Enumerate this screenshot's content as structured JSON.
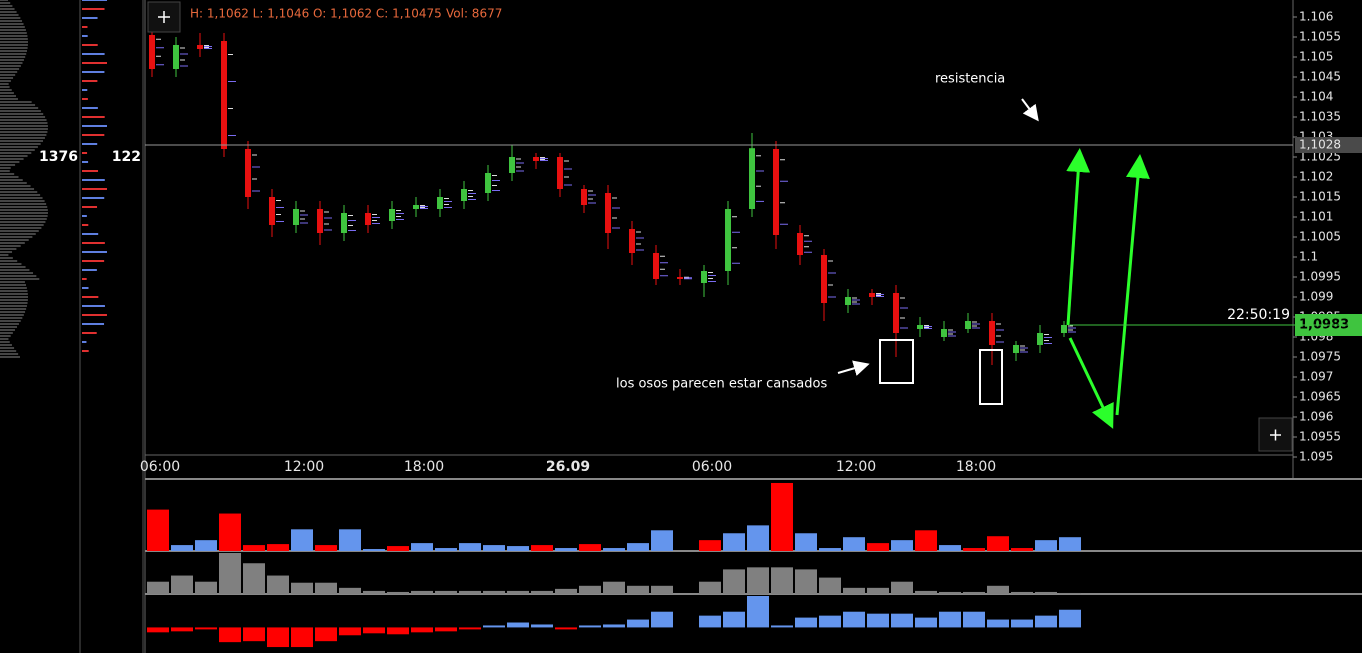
{
  "header": {
    "ohlc": "H: 1,1062 L: 1,1046 O: 1,1062 C: 1,10475",
    "volume": "Vol: 8677"
  },
  "profile": {
    "left_value": 1376,
    "right_value": 122
  },
  "annotations": {
    "resistance": "resistencia",
    "bears": "los osos parecen estar cansados"
  },
  "chart_data": [
    {
      "type": "candlestick",
      "categories": [
        "06:00",
        null,
        null,
        null,
        null,
        null,
        "12:00",
        null,
        null,
        null,
        null,
        "18:00",
        null,
        null,
        null,
        null,
        null,
        "26.09",
        null,
        null,
        null,
        null,
        null,
        "06:00",
        null,
        null,
        null,
        null,
        null,
        "12:00",
        null,
        null,
        null,
        null,
        "18:00",
        null,
        null,
        null,
        null
      ],
      "open": [
        1.10555,
        1.1047,
        1.1053,
        1.1054,
        1.1027,
        1.1015,
        1.1008,
        1.1012,
        1.1006,
        1.1011,
        1.1009,
        1.1012,
        1.1012,
        1.1014,
        1.1016,
        1.1021,
        1.1025,
        1.1025,
        1.1017,
        1.1016,
        1.1007,
        1.1001,
        1.0995,
        1.09935,
        1.09965,
        1.1012,
        1.1027,
        1.1006,
        1.10005,
        1.0988,
        1.0991,
        1.0991,
        1.0982,
        1.098,
        1.0982,
        1.0984,
        1.0976,
        1.0978,
        1.0981
      ],
      "high": [
        1.1057,
        1.1055,
        1.1056,
        1.1056,
        1.1029,
        1.1017,
        1.1014,
        1.1014,
        1.1013,
        1.1013,
        1.1014,
        1.1015,
        1.1017,
        1.1019,
        1.1023,
        1.1028,
        1.1026,
        1.1026,
        1.1018,
        1.1018,
        1.1009,
        1.1003,
        1.0997,
        1.0998,
        1.1014,
        1.1031,
        1.1029,
        1.1008,
        1.1002,
        1.0992,
        1.0992,
        1.0993,
        1.0985,
        1.0984,
        1.0986,
        1.0986,
        1.0979,
        1.0983,
        1.0984
      ],
      "low": [
        1.1045,
        1.1045,
        1.105,
        1.1025,
        1.1012,
        1.1005,
        1.1006,
        1.1003,
        1.1004,
        1.1006,
        1.1007,
        1.101,
        1.101,
        1.1012,
        1.1014,
        1.1019,
        1.1022,
        1.1015,
        1.1011,
        1.1002,
        1.0998,
        1.0993,
        1.0993,
        1.099,
        1.0993,
        1.101,
        1.1002,
        1.0998,
        1.0984,
        1.0986,
        1.0988,
        1.0975,
        1.098,
        1.0979,
        1.0981,
        1.0973,
        1.0974,
        1.0976,
        1.098
      ],
      "close": [
        1.1047,
        1.1053,
        1.1052,
        1.1027,
        1.1015,
        1.1008,
        1.1012,
        1.1006,
        1.1011,
        1.1008,
        1.1012,
        1.1013,
        1.1015,
        1.1017,
        1.1021,
        1.1025,
        1.1024,
        1.1017,
        1.1013,
        1.1006,
        1.1001,
        1.09945,
        1.09945,
        1.09965,
        1.1012,
        1.10272,
        1.10055,
        1.10005,
        1.09885,
        1.099,
        1.099,
        1.0981,
        1.0983,
        1.0982,
        1.0984,
        1.0978,
        1.0978,
        1.0981,
        1.0983
      ],
      "up_color": "#3fc43f",
      "down_color": "#e81010",
      "ylim": [
        1.0945,
        1.1065
      ],
      "yticks": [
        1.106,
        1.1055,
        1.105,
        1.1045,
        1.104,
        1.1035,
        1.103,
        1.1025,
        1.102,
        1.1015,
        1.101,
        1.1005,
        1.1,
        1.0995,
        1.099,
        1.0985,
        1.098,
        1.0975,
        1.097,
        1.0965,
        1.096,
        1.0955,
        1.095
      ],
      "level": {
        "value": 1.1028,
        "label": "1,1028"
      },
      "last_price": {
        "value": 1.0983,
        "label": "1,0983"
      },
      "bar_timer": "22:50:19"
    },
    {
      "type": "bar",
      "ylim": [
        0,
        70
      ],
      "values": [
        42,
        6,
        11,
        38,
        6,
        7,
        22,
        6,
        22,
        2,
        5,
        8,
        3,
        8,
        6,
        5,
        6,
        3,
        7,
        3,
        8,
        21,
        0,
        11,
        18,
        26,
        69,
        18,
        3,
        14,
        8,
        11,
        21,
        6,
        3,
        15,
        3,
        11,
        14
      ],
      "colors": [
        "#ff0000",
        "#6495ed",
        "#6495ed",
        "#ff0000",
        "#ff0000",
        "#ff0000",
        "#6495ed",
        "#ff0000",
        "#6495ed",
        "#6495ed",
        "#ff0000",
        "#6495ed",
        "#6495ed",
        "#6495ed",
        "#6495ed",
        "#6495ed",
        "#ff0000",
        "#6495ed",
        "#ff0000",
        "#6495ed",
        "#6495ed",
        "#6495ed",
        "#6495ed",
        "#ff0000",
        "#6495ed",
        "#6495ed",
        "#ff0000",
        "#6495ed",
        "#6495ed",
        "#6495ed",
        "#ff0000",
        "#6495ed",
        "#ff0000",
        "#6495ed",
        "#ff0000",
        "#ff0000",
        "#ff0000",
        "#6495ed",
        "#6495ed"
      ]
    },
    {
      "type": "bar",
      "ylim": [
        0,
        40
      ],
      "color": "#808080",
      "values": [
        12,
        18,
        12,
        40,
        30,
        18,
        11,
        11,
        6,
        3,
        2,
        3,
        3,
        3,
        3,
        3,
        3,
        5,
        8,
        12,
        8,
        8,
        0,
        12,
        24,
        26,
        26,
        24,
        16,
        6,
        6,
        12,
        3,
        2,
        2,
        8,
        2,
        2,
        1
      ]
    },
    {
      "type": "bar",
      "ylim": [
        -23,
        32
      ],
      "up_color": "#6495ed",
      "down_color": "#ff0000",
      "values": [
        -5,
        -4,
        -2,
        -15,
        -14,
        -20,
        -20,
        -14,
        -8,
        -6,
        -7,
        -5,
        -4,
        -2,
        2,
        5,
        3,
        -2,
        2,
        3,
        8,
        16,
        0,
        12,
        16,
        32,
        2,
        10,
        12,
        16,
        14,
        14,
        10,
        16,
        16,
        8,
        8,
        12,
        18
      ]
    }
  ]
}
